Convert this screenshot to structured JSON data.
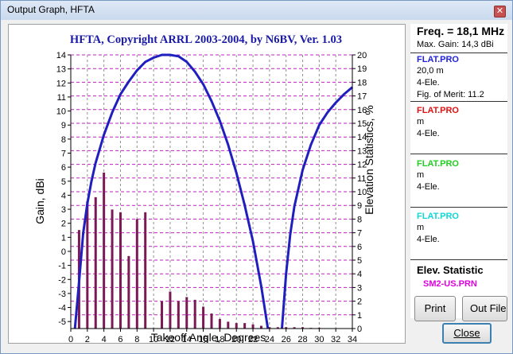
{
  "window": {
    "title": "Output Graph, HFTA",
    "close_glyph": "✕"
  },
  "chart_data": {
    "type": "bar",
    "title": "HFTA, Copyright ARRL 2003-2004, by N6BV, Ver. 1.03",
    "xlabel": "Takeoff Angle, Degrees",
    "ylabel": "Gain, dBi",
    "y2label": "Elevation Statistics, %",
    "xlim": [
      0,
      34
    ],
    "ylim": [
      -5.5,
      14
    ],
    "y2lim": [
      0,
      20
    ],
    "x_ticks": [
      0,
      2,
      4,
      6,
      8,
      10,
      12,
      14,
      16,
      18,
      20,
      22,
      24,
      26,
      28,
      30,
      32,
      34
    ],
    "y_ticks": [
      -5,
      -4,
      -3,
      -2,
      -1,
      0,
      1,
      2,
      3,
      4,
      5,
      6,
      7,
      8,
      9,
      10,
      11,
      12,
      13,
      14
    ],
    "y2_ticks": [
      0,
      1,
      2,
      3,
      4,
      5,
      6,
      7,
      8,
      9,
      10,
      11,
      12,
      13,
      14,
      15,
      16,
      17,
      18,
      19,
      20
    ],
    "grid": true,
    "bar_series": {
      "name": "SM2-US.PRN",
      "axis": "y2",
      "color": "#7a1a55",
      "x": [
        1,
        2,
        3,
        4,
        5,
        6,
        7,
        8,
        9,
        10,
        11,
        12,
        13,
        14,
        15,
        16,
        17,
        18,
        19,
        20,
        21,
        22,
        23,
        24,
        25,
        26,
        27,
        28,
        29,
        30
      ],
      "values": [
        7.2,
        9.3,
        9.6,
        11.4,
        8.7,
        8.5,
        5.3,
        8.0,
        8.5,
        0,
        2.0,
        2.7,
        2.0,
        2.3,
        2.1,
        1.6,
        1.1,
        0.7,
        0.5,
        0.4,
        0.4,
        0.3,
        0.2,
        0.1,
        0.1,
        0.1,
        0.1,
        0.1,
        0.05,
        0.05
      ]
    },
    "line_series": {
      "name": "FLAT.PRO",
      "axis": "y",
      "color": "#1f1fbf",
      "segments": [
        {
          "x": [
            0.5,
            1.0,
            1.5,
            2.0,
            2.5,
            3.0,
            4.0,
            5.0,
            6.0,
            7.0,
            8.0,
            9.0,
            10.0,
            11.0,
            12.0,
            13.0,
            14.0,
            15.0,
            16.0,
            17.0,
            18.0,
            19.0,
            20.0,
            21.0,
            22.0,
            23.0,
            23.8
          ],
          "y": [
            -5.5,
            -2.2,
            1.3,
            3.4,
            5.0,
            6.3,
            8.3,
            9.9,
            11.2,
            12.1,
            12.9,
            13.5,
            13.8,
            14.0,
            14.0,
            13.9,
            13.5,
            12.8,
            11.9,
            10.7,
            9.3,
            7.6,
            5.6,
            3.3,
            0.7,
            -2.5,
            -5.5
          ]
        },
        {
          "x": [
            25.5,
            26.0,
            26.5,
            27.0,
            28.0,
            29.0,
            30.0,
            31.0,
            32.0,
            33.0,
            34.0
          ],
          "y": [
            -5.5,
            -1.6,
            1.2,
            3.2,
            5.8,
            7.6,
            9.0,
            9.9,
            10.6,
            11.2,
            11.7
          ]
        }
      ]
    }
  },
  "sidepanel": {
    "freq": "Freq. = 18,1 MHz",
    "max_gain": "Max. Gain: 14,3 dBi",
    "series": [
      {
        "name": "FLAT.PRO",
        "color": "#1f1fdc",
        "lines": [
          "20,0 m",
          "4-Ele.",
          "Fig. of Merit:  11.2"
        ]
      },
      {
        "name": "FLAT.PRO",
        "color": "#e01010",
        "lines": [
          " m",
          "4-Ele."
        ]
      },
      {
        "name": "FLAT.PRO",
        "color": "#20d020",
        "lines": [
          " m",
          "4-Ele."
        ]
      },
      {
        "name": "FLAT.PRO",
        "color": "#10d8d8",
        "lines": [
          " m",
          "4-Ele."
        ]
      }
    ],
    "elev_title": "Elev. Statistic",
    "elev_file": "SM2-US.PRN"
  },
  "buttons": {
    "print": "Print",
    "out_file": "Out File",
    "close": "Close"
  }
}
